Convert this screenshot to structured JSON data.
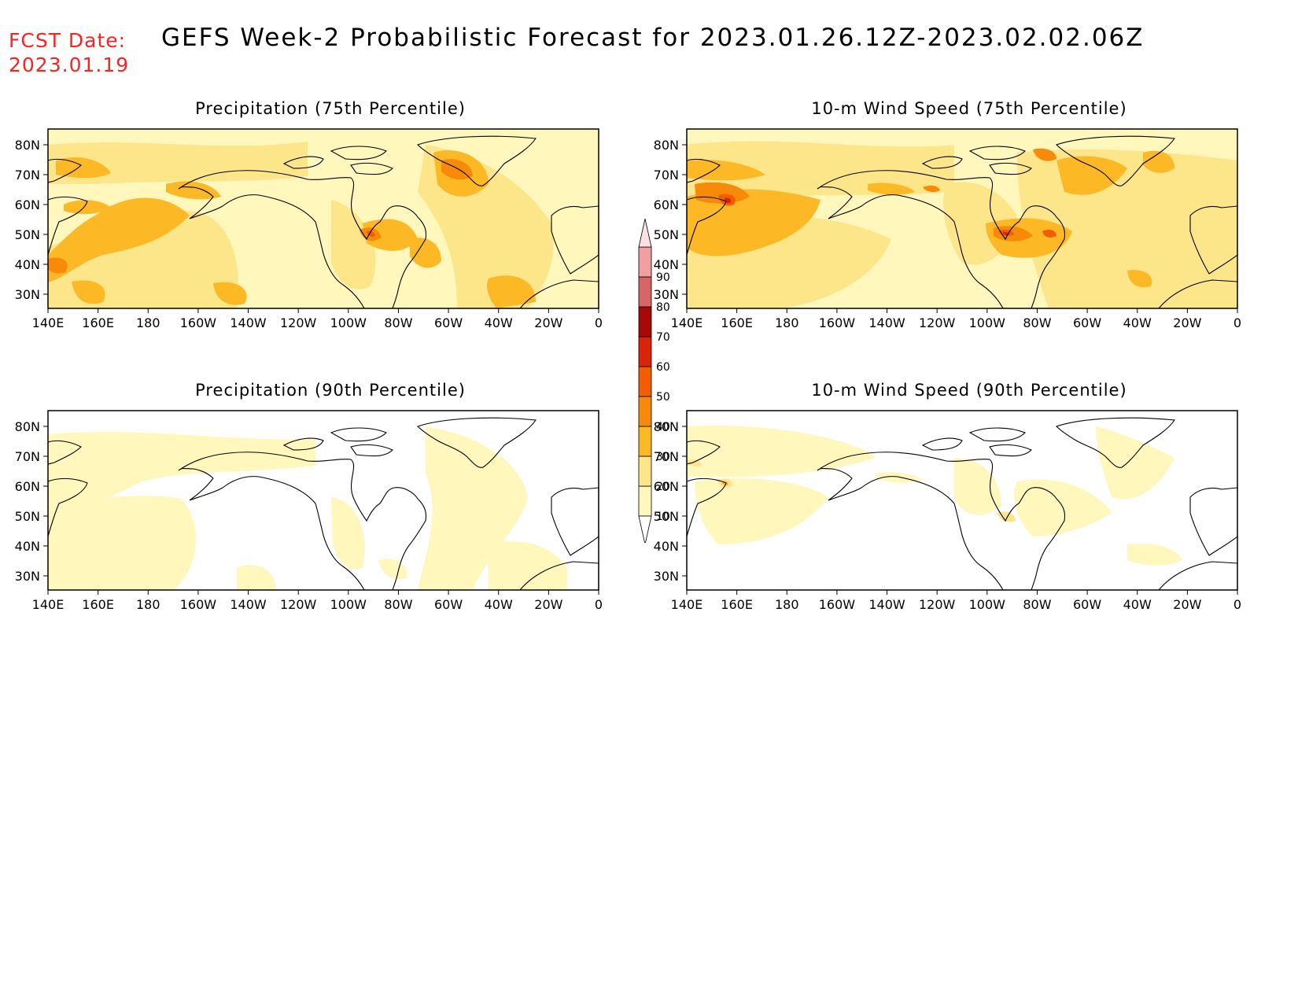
{
  "fcst_date_label": "FCST Date:",
  "fcst_date": "2023.01.19",
  "title": "GEFS Week-2 Probabilistic Forecast for 2023.01.26.12Z-2023.02.02.06Z",
  "panels": [
    {
      "id": "precip75",
      "title": "Precipitation (75th Percentile)"
    },
    {
      "id": "wind75",
      "title": "10-m Wind Speed (75th Percentile)"
    },
    {
      "id": "precip90",
      "title": "Precipitation (90th Percentile)"
    },
    {
      "id": "wind90",
      "title": "10-m Wind Speed (90th Percentile)"
    }
  ],
  "lon_ticks": [
    "140E",
    "160E",
    "180",
    "160W",
    "140W",
    "120W",
    "100W",
    "80W",
    "60W",
    "40W",
    "20W",
    "0"
  ],
  "lat_ticks": [
    "80N",
    "70N",
    "60N",
    "50N",
    "40N",
    "30N"
  ],
  "colorbar": {
    "levels": [
      "10",
      "20",
      "30",
      "40",
      "50",
      "60",
      "70",
      "80",
      "90"
    ],
    "colors": [
      "#fff7bc",
      "#fde58a",
      "#fdb825",
      "#f88a0a",
      "#f25d02",
      "#d8240a",
      "#a80808",
      "#d86565",
      "#f0a0a0",
      "#fde0e0"
    ]
  },
  "chart_data": {
    "type": "heatmap",
    "domain": {
      "lon_range": [
        "140E",
        "0"
      ],
      "lat_range": [
        "25N",
        "85N"
      ]
    },
    "units": "probability (%)",
    "contour_levels": [
      10,
      20,
      30,
      40,
      50,
      60,
      70,
      80,
      90
    ]
  }
}
